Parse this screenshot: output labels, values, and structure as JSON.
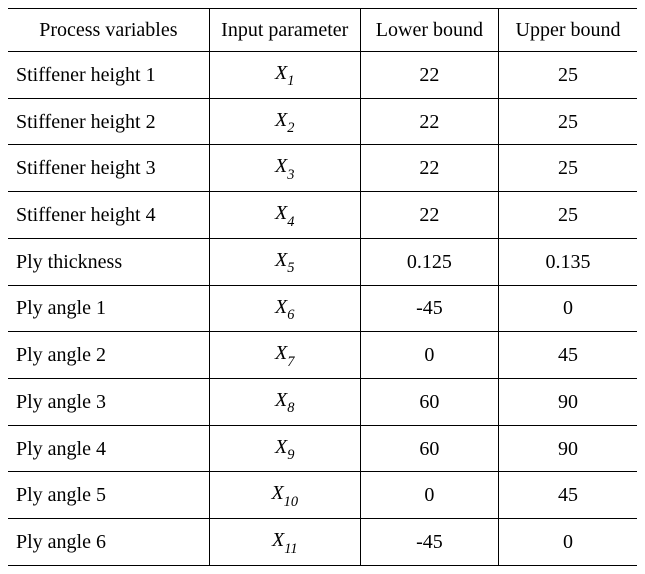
{
  "table": {
    "type": "table",
    "background_color": "#ffffff",
    "grid_color": "#000000",
    "font_family": "Times New Roman",
    "header_fontsize": 20,
    "cell_fontsize": 20,
    "param_style": "italic",
    "text_color": "#000000",
    "column_widths_pct": [
      32,
      24,
      22,
      22
    ],
    "column_align": [
      "left",
      "center",
      "center",
      "center"
    ],
    "columns": [
      "Process variables",
      "Input parameter",
      "Lower bound",
      "Upper bound"
    ],
    "rows": [
      {
        "variable": "Stiffener height 1",
        "param_base": "X",
        "param_sub": "1",
        "lower": "22",
        "upper": "25"
      },
      {
        "variable": "Stiffener height 2",
        "param_base": "X",
        "param_sub": "2",
        "lower": "22",
        "upper": "25"
      },
      {
        "variable": "Stiffener height 3",
        "param_base": "X",
        "param_sub": "3",
        "lower": "22",
        "upper": "25"
      },
      {
        "variable": "Stiffener height 4",
        "param_base": "X",
        "param_sub": "4",
        "lower": "22",
        "upper": "25"
      },
      {
        "variable": "Ply thickness",
        "param_base": "X",
        "param_sub": "5",
        "lower": "0.125",
        "upper": "0.135"
      },
      {
        "variable": "Ply angle 1",
        "param_base": "X",
        "param_sub": "6",
        "lower": "-45",
        "upper": "0"
      },
      {
        "variable": "Ply angle 2",
        "param_base": "X",
        "param_sub": "7",
        "lower": "0",
        "upper": "45"
      },
      {
        "variable": "Ply angle 3",
        "param_base": "X",
        "param_sub": "8",
        "lower": "60",
        "upper": "90"
      },
      {
        "variable": "Ply angle 4",
        "param_base": "X",
        "param_sub": "9",
        "lower": "60",
        "upper": "90"
      },
      {
        "variable": "Ply angle 5",
        "param_base": "X",
        "param_sub": "10",
        "lower": "0",
        "upper": "45"
      },
      {
        "variable": "Ply angle 6",
        "param_base": "X",
        "param_sub": "11",
        "lower": "-45",
        "upper": "0"
      }
    ]
  }
}
